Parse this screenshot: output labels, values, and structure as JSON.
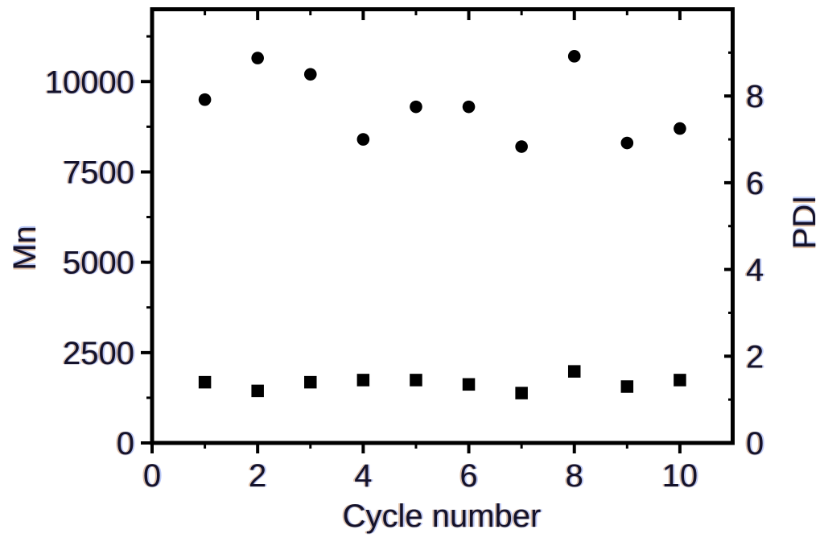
{
  "figure": {
    "background": "#ffffff",
    "ink_color": "#000000",
    "text_color": "#14122b"
  },
  "chart_data": {
    "type": "scatter",
    "title": "",
    "xlabel": "Cycle number",
    "ylabel_left": "Mn",
    "ylabel_right": "PDI",
    "grid": false,
    "legend": "none",
    "x": [
      1,
      2,
      3,
      4,
      5,
      6,
      7,
      8,
      9,
      10
    ],
    "series": [
      {
        "name": "Mn",
        "axis": "left",
        "marker": "circle",
        "color": "#000000",
        "values": [
          9500,
          10650,
          10200,
          8400,
          9300,
          9300,
          8200,
          10700,
          8300,
          8700
        ]
      },
      {
        "name": "PDI",
        "axis": "right",
        "marker": "square",
        "color": "#000000",
        "values": [
          1.4,
          1.2,
          1.4,
          1.45,
          1.45,
          1.35,
          1.15,
          1.65,
          1.3,
          1.45
        ]
      }
    ],
    "axes": {
      "x": {
        "label": "Cycle number",
        "min": 0,
        "max": 11,
        "major_ticks": [
          0,
          2,
          4,
          6,
          8,
          10
        ],
        "minor_ticks": [
          1,
          3,
          5,
          7,
          9
        ],
        "tick_labels": [
          "0",
          "2",
          "4",
          "6",
          "8",
          "10"
        ]
      },
      "left": {
        "label": "Mn",
        "min": 0,
        "max": 12000,
        "major_ticks": [
          0,
          2500,
          5000,
          7500,
          10000
        ],
        "minor_ticks": [
          1250,
          3750,
          6250,
          8750,
          11250
        ],
        "tick_labels": [
          "0",
          "2500",
          "5000",
          "7500",
          "10000"
        ]
      },
      "right": {
        "label": "PDI",
        "min": 0,
        "max": 10,
        "major_ticks": [
          0,
          2,
          4,
          6,
          8
        ],
        "minor_ticks": [
          1,
          3,
          5,
          7,
          9
        ],
        "tick_labels": [
          "0",
          "2",
          "4",
          "6",
          "8"
        ]
      }
    }
  }
}
